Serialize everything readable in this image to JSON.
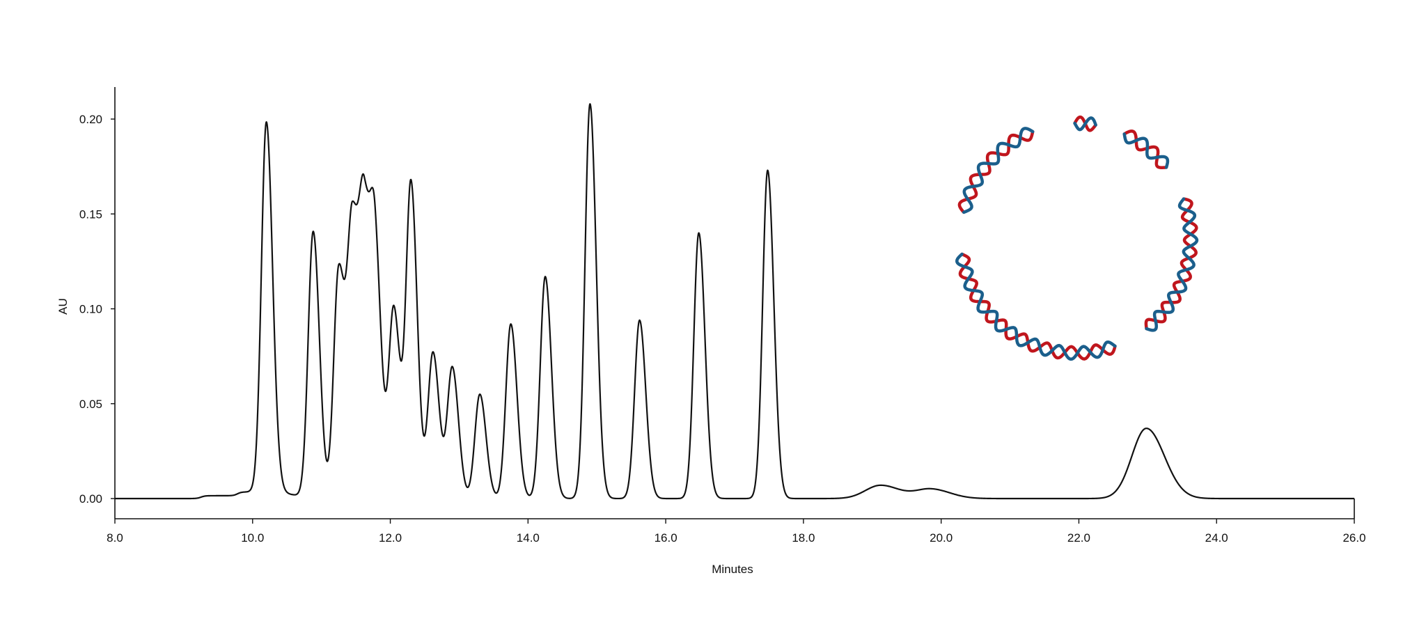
{
  "chart_data": {
    "type": "line",
    "title": "",
    "xlabel": "Minutes",
    "ylabel": "AU",
    "xlim": [
      8.0,
      26.0
    ],
    "ylim": [
      -0.01,
      0.22
    ],
    "x_ticks": [
      "8.0",
      "10.0",
      "12.0",
      "14.0",
      "16.0",
      "18.0",
      "20.0",
      "22.0",
      "24.0",
      "26.0"
    ],
    "y_ticks": [
      "0.00",
      "0.05",
      "0.10",
      "0.15",
      "0.20"
    ],
    "grid": false,
    "legend": "none",
    "colors": {
      "trace": "#111111",
      "strand_a": "#c0161d",
      "strand_b": "#1b5f8c"
    },
    "illustration": "circular-dna-plasmid-icon",
    "series": [
      {
        "peaks": [
          {
            "rt": 10.2,
            "height": 0.195
          },
          {
            "rt": 10.88,
            "height": 0.14
          },
          {
            "rt": 11.25,
            "height": 0.12
          },
          {
            "rt": 11.45,
            "height": 0.138
          },
          {
            "rt": 11.62,
            "height": 0.136
          },
          {
            "rt": 11.78,
            "height": 0.125
          },
          {
            "rt": 12.05,
            "height": 0.1
          },
          {
            "rt": 12.3,
            "height": 0.166
          },
          {
            "rt": 12.62,
            "height": 0.077
          },
          {
            "rt": 12.9,
            "height": 0.069
          },
          {
            "rt": 13.3,
            "height": 0.055
          },
          {
            "rt": 13.75,
            "height": 0.092
          },
          {
            "rt": 14.25,
            "height": 0.117
          },
          {
            "rt": 14.9,
            "height": 0.208
          },
          {
            "rt": 15.62,
            "height": 0.094
          },
          {
            "rt": 16.48,
            "height": 0.14
          },
          {
            "rt": 17.48,
            "height": 0.173
          },
          {
            "rt": 19.12,
            "height": 0.007
          },
          {
            "rt": 19.85,
            "height": 0.005
          },
          {
            "rt": 22.98,
            "height": 0.037
          }
        ],
        "baseline_steps": [
          {
            "x": 9.25,
            "y": 0.0015
          },
          {
            "x": 9.78,
            "y": 0.002
          }
        ]
      }
    ]
  }
}
